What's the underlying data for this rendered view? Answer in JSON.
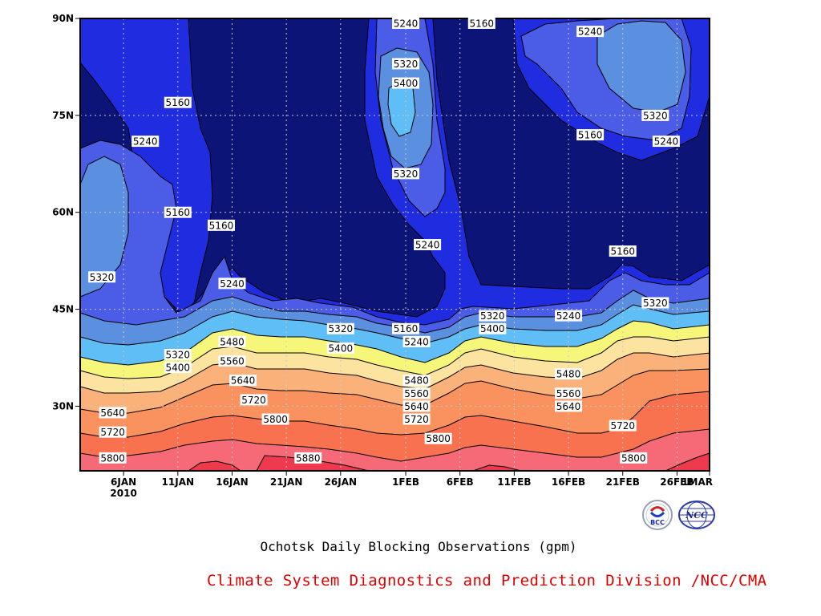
{
  "chart_data": {
    "type": "contour",
    "title": "Ochotsk Daily Blocking Observations (gpm)",
    "x_ticks": [
      "6JAN",
      "11JAN",
      "16JAN",
      "21JAN",
      "26JAN",
      "1FEB",
      "6FEB",
      "11FEB",
      "16FEB",
      "21FEB",
      "26FEB",
      "1MAR"
    ],
    "x_year_label": "2010",
    "y_ticks": [
      "30N",
      "45N",
      "60N",
      "75N",
      "90N"
    ],
    "ylim": [
      "20N",
      "90N"
    ],
    "xlim": [
      "2JAN2010",
      "1MAR2010"
    ],
    "grid": true,
    "contour_levels": [
      5160,
      5240,
      5320,
      5400,
      5480,
      5560,
      5640,
      5720,
      5800,
      5880
    ],
    "band_colors": [
      "#0d1478",
      "#1f2ce0",
      "#4b5ce6",
      "#5b8fe0",
      "#5fbef5",
      "#f6f67a",
      "#fde3a0",
      "#fbb27a",
      "#f9925e",
      "#f97250",
      "#f66a78",
      "#ee3a4c"
    ],
    "contour_labels": [
      {
        "text": "5240",
        "x": "1FEB",
        "y": "90N"
      },
      {
        "text": "5160",
        "x": "8FEB",
        "y": "90N"
      },
      {
        "text": "5240",
        "x": "18FEB",
        "y": "88N"
      },
      {
        "text": "5320",
        "x": "1FEB",
        "y": "83N"
      },
      {
        "text": "5400",
        "x": "1FEB",
        "y": "80N"
      },
      {
        "text": "5160",
        "x": "11JAN",
        "y": "77N"
      },
      {
        "text": "5320",
        "x": "24FEB",
        "y": "75N"
      },
      {
        "text": "5240",
        "x": "8JAN",
        "y": "71N"
      },
      {
        "text": "5160",
        "x": "18FEB",
        "y": "72N"
      },
      {
        "text": "5240",
        "x": "25FEB",
        "y": "71N"
      },
      {
        "text": "5320",
        "x": "1FEB",
        "y": "66N"
      },
      {
        "text": "5160",
        "x": "11JAN",
        "y": "60N"
      },
      {
        "text": "5160",
        "x": "15JAN",
        "y": "58N"
      },
      {
        "text": "5240",
        "x": "3FEB",
        "y": "55N"
      },
      {
        "text": "5160",
        "x": "21FEB",
        "y": "54N"
      },
      {
        "text": "5320",
        "x": "4JAN",
        "y": "50N"
      },
      {
        "text": "5240",
        "x": "16JAN",
        "y": "49N"
      },
      {
        "text": "5320",
        "x": "24FEB",
        "y": "46N"
      },
      {
        "text": "5320",
        "x": "9FEB",
        "y": "44N"
      },
      {
        "text": "5240",
        "x": "16FEB",
        "y": "44N"
      },
      {
        "text": "5160",
        "x": "1FEB",
        "y": "42N"
      },
      {
        "text": "5400",
        "x": "9FEB",
        "y": "42N"
      },
      {
        "text": "5320",
        "x": "26JAN",
        "y": "42N"
      },
      {
        "text": "5240",
        "x": "2FEB",
        "y": "40N"
      },
      {
        "text": "5480",
        "x": "16JAN",
        "y": "40N"
      },
      {
        "text": "5400",
        "x": "26JAN",
        "y": "39N"
      },
      {
        "text": "5320",
        "x": "11JAN",
        "y": "38N"
      },
      {
        "text": "5560",
        "x": "16JAN",
        "y": "37N"
      },
      {
        "text": "5400",
        "x": "11JAN",
        "y": "36N"
      },
      {
        "text": "5640",
        "x": "17JAN",
        "y": "34N"
      },
      {
        "text": "5480",
        "x": "2FEB",
        "y": "34N"
      },
      {
        "text": "5480",
        "x": "16FEB",
        "y": "35N"
      },
      {
        "text": "5560",
        "x": "2FEB",
        "y": "32N"
      },
      {
        "text": "5560",
        "x": "16FEB",
        "y": "32N"
      },
      {
        "text": "5720",
        "x": "18JAN",
        "y": "31N"
      },
      {
        "text": "5640",
        "x": "2FEB",
        "y": "30N"
      },
      {
        "text": "5640",
        "x": "16FEB",
        "y": "30N"
      },
      {
        "text": "5640",
        "x": "5JAN",
        "y": "29N"
      },
      {
        "text": "5800",
        "x": "20JAN",
        "y": "28N"
      },
      {
        "text": "5720",
        "x": "2FEB",
        "y": "28N"
      },
      {
        "text": "5720",
        "x": "21FEB",
        "y": "27N"
      },
      {
        "text": "5720",
        "x": "5JAN",
        "y": "26N"
      },
      {
        "text": "5800",
        "x": "4FEB",
        "y": "25N"
      },
      {
        "text": "5880",
        "x": "23JAN",
        "y": "22N"
      },
      {
        "text": "5800",
        "x": "5JAN",
        "y": "22N"
      },
      {
        "text": "5800",
        "x": "22FEB",
        "y": "22N"
      }
    ]
  },
  "credit": "Climate System Diagnostics and Prediction Division /NCC/CMA",
  "logos": {
    "bcc": {
      "text": "BCC"
    },
    "ncc": {
      "text": "NCC"
    }
  }
}
